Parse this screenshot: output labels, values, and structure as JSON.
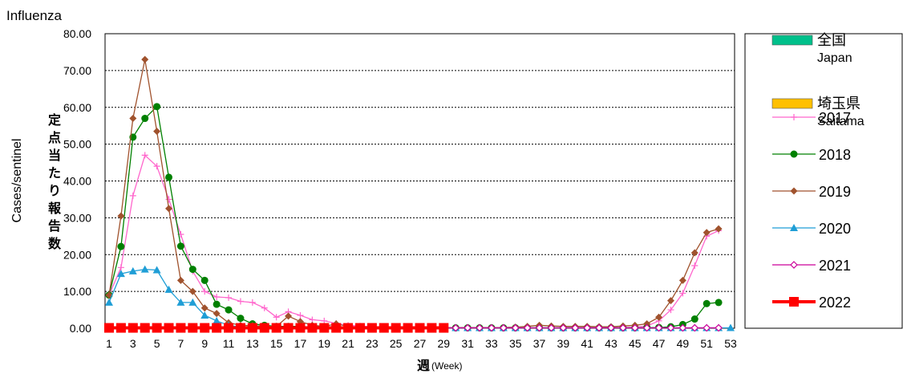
{
  "chart_data": {
    "type": "line",
    "title": "Influenza",
    "ylabel_en": "Cases/sentinel",
    "ylabel_ja": "定点当たり報告数",
    "xlabel_ja": "週",
    "xlabel_en": "(Week)",
    "ylim": [
      0,
      80
    ],
    "xlim": [
      1,
      53
    ],
    "yticks": [
      "0.00",
      "10.00",
      "20.00",
      "30.00",
      "40.00",
      "50.00",
      "60.00",
      "70.00",
      "80.00"
    ],
    "xticks": [
      "1",
      "3",
      "5",
      "7",
      "9",
      "11",
      "13",
      "15",
      "17",
      "19",
      "21",
      "23",
      "25",
      "27",
      "29",
      "31",
      "33",
      "35",
      "37",
      "39",
      "41",
      "43",
      "45",
      "47",
      "49",
      "51",
      "53"
    ],
    "grid": "horizontal-dotted",
    "legend_position": "right",
    "legend_area": [
      {
        "label": "全国",
        "sublabel": "Japan",
        "color": "#00c08b",
        "style": "area"
      },
      {
        "label": "埼玉県",
        "sublabel": "Saitama",
        "color": "#ffc000",
        "style": "area"
      }
    ],
    "series": [
      {
        "name": "2017",
        "color": "#ff66cc",
        "marker": "plus",
        "x": [
          1,
          2,
          3,
          4,
          5,
          6,
          7,
          8,
          9,
          10,
          11,
          12,
          13,
          14,
          15,
          16,
          17,
          18,
          19,
          20,
          21,
          22,
          23,
          24,
          25,
          26,
          27,
          28,
          29,
          30,
          31,
          32,
          33,
          34,
          35,
          36,
          37,
          38,
          39,
          40,
          41,
          42,
          43,
          44,
          45,
          46,
          47,
          48,
          49,
          50,
          51,
          52
        ],
        "values": [
          9.0,
          16.5,
          36.0,
          47.0,
          44.0,
          35.0,
          25.5,
          15.5,
          10.0,
          8.5,
          8.3,
          7.3,
          7.0,
          5.5,
          3.0,
          4.5,
          3.5,
          2.3,
          2.0,
          1.3,
          0.8,
          0.6,
          0.4,
          0.3,
          0.2,
          0.2,
          0.2,
          0.1,
          0.1,
          0.1,
          0.1,
          0.1,
          0.1,
          0.1,
          0.1,
          0.1,
          0.1,
          0.1,
          0.1,
          0.1,
          0.1,
          0.1,
          0.2,
          0.2,
          0.3,
          0.6,
          2.0,
          5.0,
          9.5,
          17.0,
          25.0,
          26.5
        ]
      },
      {
        "name": "2018",
        "color": "#008000",
        "marker": "circle",
        "x": [
          1,
          2,
          3,
          4,
          5,
          6,
          7,
          8,
          9,
          10,
          11,
          12,
          13,
          14,
          15,
          16,
          17,
          18,
          19,
          20,
          21,
          22,
          23,
          24,
          25,
          26,
          27,
          28,
          29,
          30,
          31,
          32,
          33,
          34,
          35,
          36,
          37,
          38,
          39,
          40,
          41,
          42,
          43,
          44,
          45,
          46,
          47,
          48,
          49,
          50,
          51,
          52
        ],
        "values": [
          9.0,
          22.2,
          51.9,
          57.0,
          60.2,
          41.0,
          22.3,
          16.0,
          13.0,
          6.5,
          5.0,
          2.7,
          1.2,
          0.8,
          0.5,
          0.5,
          0.5,
          0.3,
          0.2,
          0.2,
          0.1,
          0.1,
          0.1,
          0.1,
          0.1,
          0.1,
          0.1,
          0.1,
          0.1,
          0.1,
          0.1,
          0.1,
          0.1,
          0.1,
          0.1,
          0.1,
          0.1,
          0.1,
          0.1,
          0.1,
          0.1,
          0.1,
          0.1,
          0.1,
          0.1,
          0.2,
          0.2,
          0.4,
          1.0,
          2.5,
          6.7,
          7.0
        ]
      },
      {
        "name": "2019",
        "color": "#a0522d",
        "marker": "diamond",
        "x": [
          1,
          2,
          3,
          4,
          5,
          6,
          7,
          8,
          9,
          10,
          11,
          12,
          13,
          14,
          15,
          16,
          17,
          18,
          19,
          20,
          21,
          22,
          23,
          24,
          25,
          26,
          27,
          28,
          29,
          30,
          31,
          32,
          33,
          34,
          35,
          36,
          37,
          38,
          39,
          40,
          41,
          42,
          43,
          44,
          45,
          46,
          47,
          48,
          49,
          50,
          51,
          52
        ],
        "values": [
          9.0,
          30.5,
          57.0,
          73.0,
          53.5,
          32.5,
          13.0,
          10.0,
          5.5,
          4.0,
          1.5,
          0.8,
          0.7,
          0.5,
          0.5,
          3.3,
          1.8,
          0.8,
          0.5,
          1.2,
          0.5,
          0.3,
          0.2,
          0.2,
          0.2,
          0.2,
          0.1,
          0.1,
          0.1,
          0.2,
          0.2,
          0.2,
          0.2,
          0.2,
          0.3,
          0.5,
          0.8,
          0.6,
          0.5,
          0.5,
          0.5,
          0.4,
          0.4,
          0.6,
          0.8,
          1.2,
          3.0,
          7.5,
          13.0,
          20.5,
          26.0,
          27.0
        ]
      },
      {
        "name": "2020",
        "color": "#1f9ed6",
        "marker": "triangle",
        "x": [
          1,
          2,
          3,
          4,
          5,
          6,
          7,
          8,
          9,
          10,
          11,
          12,
          13,
          14,
          15,
          16,
          17,
          18,
          19,
          20,
          21,
          22,
          23,
          24,
          25,
          26,
          27,
          28,
          29,
          30,
          31,
          32,
          33,
          34,
          35,
          36,
          37,
          38,
          39,
          40,
          41,
          42,
          43,
          44,
          45,
          46,
          47,
          48,
          49,
          50,
          51,
          52,
          53
        ],
        "values": [
          7.0,
          14.8,
          15.5,
          16.0,
          15.8,
          10.5,
          7.0,
          7.0,
          3.5,
          2.0,
          0.8,
          0.3,
          0.2,
          0.1,
          0.1,
          0.1,
          0.1,
          0.1,
          0.1,
          0.1,
          0.1,
          0.1,
          0.1,
          0.1,
          0.1,
          0.1,
          0.1,
          0.1,
          0.1,
          0.1,
          0.1,
          0.1,
          0.1,
          0.1,
          0.1,
          0.1,
          0.1,
          0.1,
          0.1,
          0.1,
          0.1,
          0.1,
          0.1,
          0.1,
          0.1,
          0.1,
          0.1,
          0.1,
          0.1,
          0.1,
          0.1,
          0.1,
          0.1
        ]
      },
      {
        "name": "2021",
        "color": "#cc0099",
        "marker": "diamond-open",
        "x": [
          1,
          2,
          3,
          4,
          5,
          6,
          7,
          8,
          9,
          10,
          11,
          12,
          13,
          14,
          15,
          16,
          17,
          18,
          19,
          20,
          21,
          22,
          23,
          24,
          25,
          26,
          27,
          28,
          29,
          30,
          31,
          32,
          33,
          34,
          35,
          36,
          37,
          38,
          39,
          40,
          41,
          42,
          43,
          44,
          45,
          46,
          47,
          48,
          49,
          50,
          51,
          52
        ],
        "values": [
          0.1,
          0.1,
          0.1,
          0.1,
          0.1,
          0.1,
          0.1,
          0.1,
          0.1,
          0.1,
          0.1,
          0.1,
          0.1,
          0.1,
          0.1,
          0.1,
          0.1,
          0.1,
          0.1,
          0.1,
          0.1,
          0.1,
          0.1,
          0.1,
          0.1,
          0.1,
          0.1,
          0.1,
          0.1,
          0.1,
          0.1,
          0.1,
          0.1,
          0.1,
          0.1,
          0.1,
          0.1,
          0.1,
          0.1,
          0.1,
          0.1,
          0.1,
          0.1,
          0.1,
          0.1,
          0.1,
          0.1,
          0.1,
          0.1,
          0.1,
          0.1,
          0.1
        ]
      },
      {
        "name": "2022",
        "color": "#ff0000",
        "marker": "square",
        "bold": true,
        "x": [
          1,
          2,
          3,
          4,
          5,
          6,
          7,
          8,
          9,
          10,
          11,
          12,
          13,
          14,
          15,
          16,
          17,
          18,
          19,
          20,
          21,
          22,
          23,
          24,
          25,
          26,
          27,
          28,
          29
        ],
        "values": [
          0.1,
          0.1,
          0.1,
          0.1,
          0.1,
          0.1,
          0.1,
          0.1,
          0.1,
          0.1,
          0.1,
          0.1,
          0.1,
          0.1,
          0.1,
          0.1,
          0.1,
          0.1,
          0.1,
          0.1,
          0.1,
          0.1,
          0.1,
          0.1,
          0.1,
          0.1,
          0.1,
          0.1,
          0.1
        ]
      }
    ]
  }
}
